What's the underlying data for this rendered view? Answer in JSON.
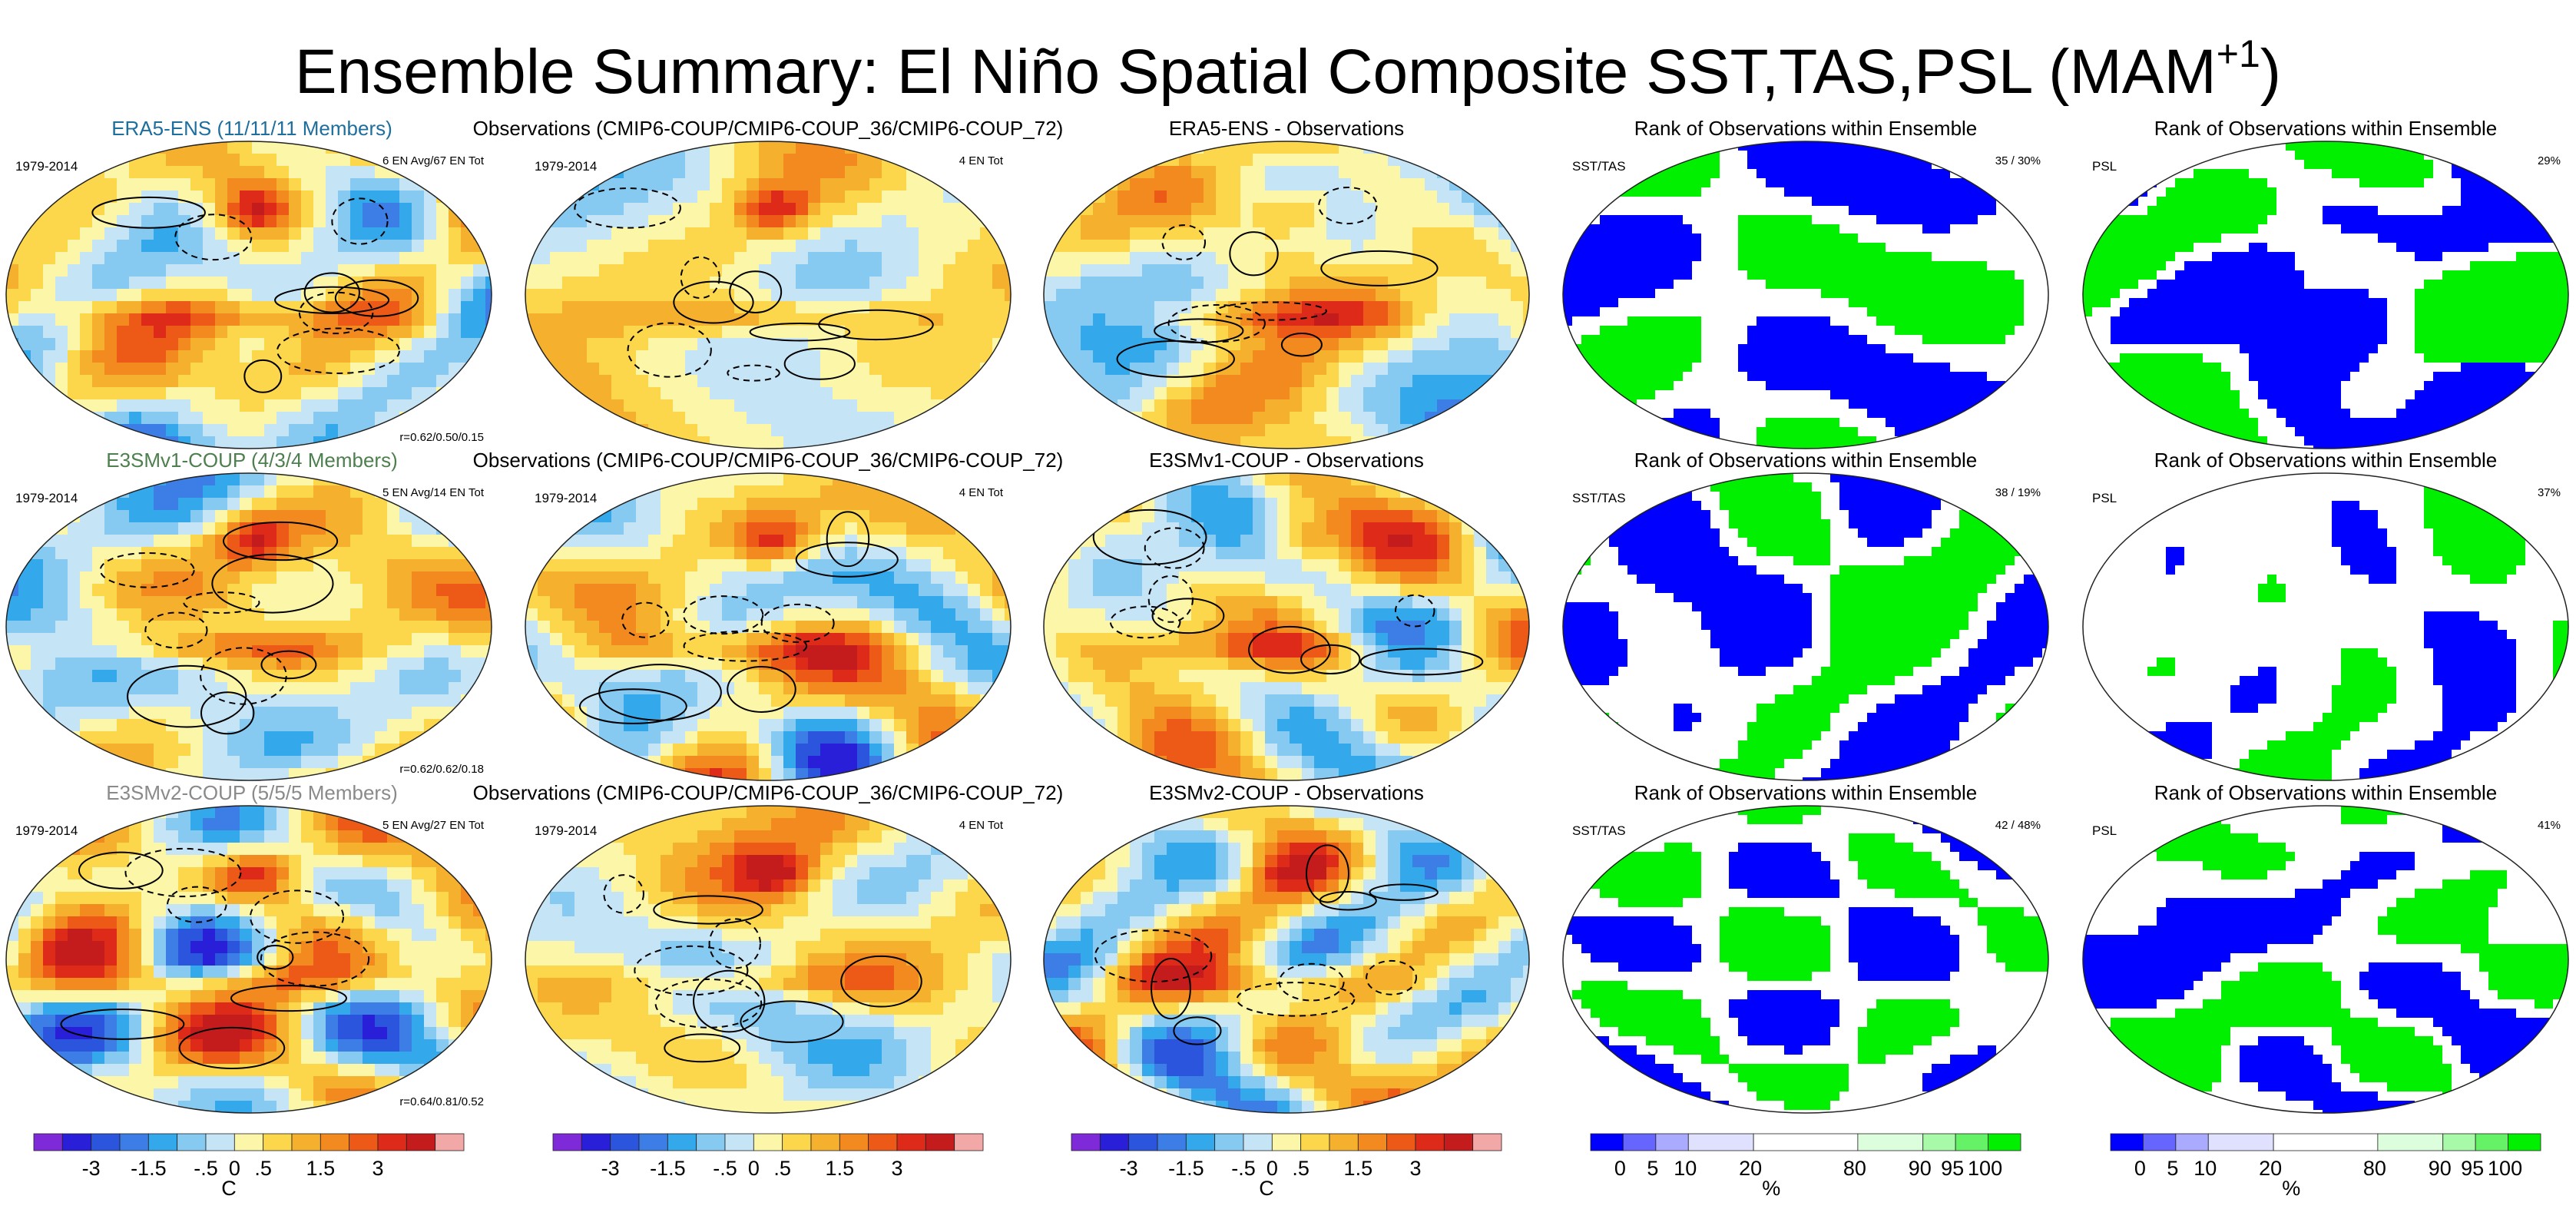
{
  "title": {
    "main": "Ensemble Summary: El Niño Spatial Composite SST,TAS,PSL (MAM",
    "superscript": "+1",
    "close": ")"
  },
  "colors": {
    "temp_scale": [
      "#7f2ad9",
      "#2a1fd8",
      "#2b55dd",
      "#3d7de6",
      "#33a9ec",
      "#86caf2",
      "#c5e5f7",
      "#fcf6a8",
      "#fcd74c",
      "#f5b02d",
      "#f38a20",
      "#ed5a18",
      "#dd2a19",
      "#c41c1c",
      "#f3a8a8"
    ],
    "rank_scale": [
      "#0000ff",
      "#6666ff",
      "#aaaaff",
      "#e0e0ff",
      "#ffffff",
      "#ddfedd",
      "#a8f9a8",
      "#66f266",
      "#00f000"
    ]
  },
  "chart_data": [
    {
      "type": "map",
      "row": 0,
      "col": 0,
      "title": "ERA5-ENS (11/11/11 Members)",
      "title_color": "#1e6e9e",
      "left_label": "1979-2014",
      "right_label": "6 EN Avg/67 EN Tot",
      "stat": "r=0.62/0.50/0.15",
      "seed": 11,
      "kind": "temp"
    },
    {
      "type": "map",
      "row": 0,
      "col": 1,
      "title": "Observations (CMIP6-COUP/CMIP6-COUP_36/CMIP6-COUP_72)",
      "title_color": "#000000",
      "left_label": "1979-2014",
      "right_label": "4 EN Tot",
      "stat": "",
      "seed": 21,
      "kind": "temp"
    },
    {
      "type": "map",
      "row": 0,
      "col": 2,
      "title": "ERA5-ENS - Observations",
      "title_color": "#000000",
      "left_label": "",
      "right_label": "",
      "stat": "",
      "seed": 31,
      "kind": "diff"
    },
    {
      "type": "map",
      "row": 0,
      "col": 3,
      "title": "Rank of Observations within Ensemble",
      "title_color": "#000000",
      "left_label": "SST/TAS",
      "right_label": "35 /  30%",
      "stat": "",
      "seed": 41,
      "kind": "rank"
    },
    {
      "type": "map",
      "row": 0,
      "col": 4,
      "title": "Rank of Observations within Ensemble",
      "title_color": "#000000",
      "left_label": "PSL",
      "right_label": "29%",
      "stat": "",
      "seed": 51,
      "kind": "rank"
    },
    {
      "type": "map",
      "row": 1,
      "col": 0,
      "title": "E3SMv1-COUP (4/3/4 Members)",
      "title_color": "#4e7f4e",
      "left_label": "1979-2014",
      "right_label": "5 EN Avg/14 EN Tot",
      "stat": "r=0.62/0.62/0.18",
      "seed": 12,
      "kind": "temp"
    },
    {
      "type": "map",
      "row": 1,
      "col": 1,
      "title": "Observations (CMIP6-COUP/CMIP6-COUP_36/CMIP6-COUP_72)",
      "title_color": "#000000",
      "left_label": "1979-2014",
      "right_label": "4 EN Tot",
      "stat": "",
      "seed": 22,
      "kind": "temp"
    },
    {
      "type": "map",
      "row": 1,
      "col": 2,
      "title": "E3SMv1-COUP - Observations",
      "title_color": "#000000",
      "left_label": "",
      "right_label": "",
      "stat": "",
      "seed": 32,
      "kind": "diff"
    },
    {
      "type": "map",
      "row": 1,
      "col": 3,
      "title": "Rank of Observations within Ensemble",
      "title_color": "#000000",
      "left_label": "SST/TAS",
      "right_label": "38 /  19%",
      "stat": "",
      "seed": 42,
      "kind": "rank"
    },
    {
      "type": "map",
      "row": 1,
      "col": 4,
      "title": "Rank of Observations within Ensemble",
      "title_color": "#000000",
      "left_label": "PSL",
      "right_label": "37%",
      "stat": "",
      "seed": 52,
      "kind": "rank"
    },
    {
      "type": "map",
      "row": 2,
      "col": 0,
      "title": "E3SMv2-COUP (5/5/5 Members)",
      "title_color": "#8a8a8a",
      "left_label": "1979-2014",
      "right_label": "5 EN Avg/27 EN Tot",
      "stat": "r=0.64/0.81/0.52",
      "seed": 13,
      "kind": "temp"
    },
    {
      "type": "map",
      "row": 2,
      "col": 1,
      "title": "Observations (CMIP6-COUP/CMIP6-COUP_36/CMIP6-COUP_72)",
      "title_color": "#000000",
      "left_label": "1979-2014",
      "right_label": "4 EN Tot",
      "stat": "",
      "seed": 23,
      "kind": "temp"
    },
    {
      "type": "map",
      "row": 2,
      "col": 2,
      "title": "E3SMv2-COUP - Observations",
      "title_color": "#000000",
      "left_label": "",
      "right_label": "",
      "stat": "",
      "seed": 33,
      "kind": "diff"
    },
    {
      "type": "map",
      "row": 2,
      "col": 3,
      "title": "Rank of Observations within Ensemble",
      "title_color": "#000000",
      "left_label": "SST/TAS",
      "right_label": "42 /  48%",
      "stat": "",
      "seed": 43,
      "kind": "rank"
    },
    {
      "type": "map",
      "row": 2,
      "col": 4,
      "title": "Rank of Observations within Ensemble",
      "title_color": "#000000",
      "left_label": "PSL",
      "right_label": "41%",
      "stat": "",
      "seed": 53,
      "kind": "rank"
    }
  ],
  "colorbars": [
    {
      "col": 0,
      "kind": "temp",
      "ticks": [
        "-3",
        "-1.5",
        "-.5",
        "0",
        ".5",
        "1.5",
        "3"
      ],
      "unit": "C"
    },
    {
      "col": 1,
      "kind": "temp",
      "ticks": [
        "-3",
        "-1.5",
        "-.5",
        "0",
        ".5",
        "1.5",
        "3"
      ],
      "unit": ""
    },
    {
      "col": 2,
      "kind": "temp",
      "ticks": [
        "-3",
        "-1.5",
        "-.5",
        "0",
        ".5",
        "1.5",
        "3"
      ],
      "unit": "C"
    },
    {
      "col": 3,
      "kind": "rank",
      "ticks": [
        "0",
        "5",
        "10",
        "20",
        "80",
        "90",
        "95",
        "100"
      ],
      "unit": "%"
    },
    {
      "col": 4,
      "kind": "rank",
      "ticks": [
        "0",
        "5",
        "10",
        "20",
        "80",
        "90",
        "95",
        "100"
      ],
      "unit": "%"
    }
  ]
}
